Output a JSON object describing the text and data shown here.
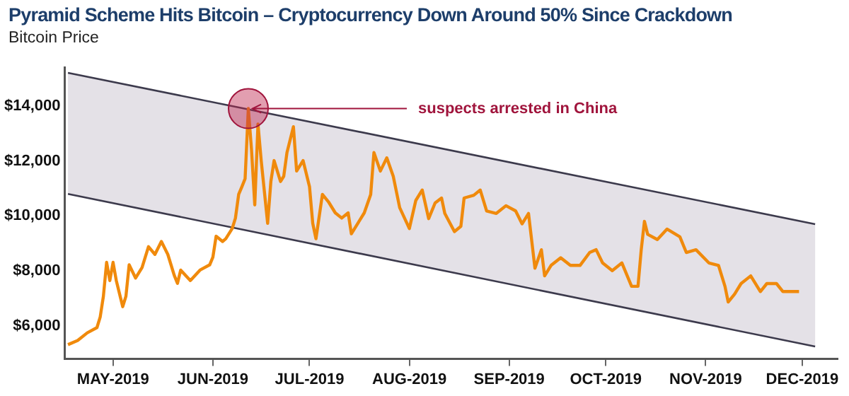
{
  "chart_data": {
    "type": "line",
    "title": "Pyramid Scheme Hits Bitcoin – Cryptocurrency Down Around 50% Since Crackdown",
    "ylabel": "Bitcoin Price",
    "xlim": [
      "2019-04-16",
      "2019-12-12"
    ],
    "ylim": [
      4800,
      15400
    ],
    "xticks": [
      {
        "value": "2019-05-01",
        "label": "MAY-2019"
      },
      {
        "value": "2019-06-01",
        "label": "JUN-2019"
      },
      {
        "value": "2019-07-01",
        "label": "JUL-2019"
      },
      {
        "value": "2019-08-01",
        "label": "AUG-2019"
      },
      {
        "value": "2019-09-01",
        "label": "SEP-2019"
      },
      {
        "value": "2019-10-01",
        "label": "OCT-2019"
      },
      {
        "value": "2019-11-01",
        "label": "NOV-2019"
      },
      {
        "value": "2019-12-01",
        "label": "DEC-2019"
      }
    ],
    "yticks": [
      {
        "value": 6000,
        "label": "$6,000"
      },
      {
        "value": 8000,
        "label": "$8,000"
      },
      {
        "value": 10000,
        "label": "$10,000"
      },
      {
        "value": 12000,
        "label": "$12,000"
      },
      {
        "value": 14000,
        "label": "$14,000"
      }
    ],
    "grid": false,
    "legend": false,
    "marker": "none",
    "annotations": [
      {
        "text": "suspects arrested in China",
        "x": "2019-06-12",
        "y": 13900
      }
    ],
    "series": [
      {
        "type": "line",
        "color": "#3c3a4c",
        "x": [
          "2019-04-17",
          "2019-12-05"
        ],
        "values": [
          15200,
          9700
        ]
      },
      {
        "type": "line",
        "color": "#3c3a4c",
        "x": [
          "2019-04-17",
          "2019-12-05"
        ],
        "values": [
          10800,
          5250
        ],
        "lower": [
          10800,
          5250
        ],
        "upper": [
          15200,
          9700
        ]
      },
      {
        "type": "line",
        "color": "#f08a0c",
        "x": [
          "2019-04-17",
          "2019-04-20",
          "2019-04-23",
          "2019-04-26",
          "2019-04-27",
          "2019-04-28",
          "2019-04-29",
          "2019-04-30",
          "2019-05-01",
          "2019-05-02",
          "2019-05-04",
          "2019-05-05",
          "2019-05-06",
          "2019-05-08",
          "2019-05-10",
          "2019-05-12",
          "2019-05-14",
          "2019-05-16",
          "2019-05-18",
          "2019-05-20",
          "2019-05-21",
          "2019-05-22",
          "2019-05-25",
          "2019-05-28",
          "2019-05-31",
          "2019-06-01",
          "2019-06-02",
          "2019-06-04",
          "2019-06-05",
          "2019-06-07",
          "2019-06-08",
          "2019-06-09",
          "2019-06-10",
          "2019-06-11",
          "2019-06-12",
          "2019-06-13",
          "2019-06-14",
          "2019-06-15",
          "2019-06-16",
          "2019-06-17",
          "2019-06-18",
          "2019-06-19",
          "2019-06-20",
          "2019-06-22",
          "2019-06-23",
          "2019-06-24",
          "2019-06-26",
          "2019-06-27",
          "2019-06-29",
          "2019-07-01",
          "2019-07-02",
          "2019-07-03",
          "2019-07-05",
          "2019-07-07",
          "2019-07-09",
          "2019-07-11",
          "2019-07-13",
          "2019-07-14",
          "2019-07-16",
          "2019-07-18",
          "2019-07-20",
          "2019-07-21",
          "2019-07-23",
          "2019-07-25",
          "2019-07-27",
          "2019-07-29",
          "2019-08-01",
          "2019-08-03",
          "2019-08-05",
          "2019-08-07",
          "2019-08-09",
          "2019-08-11",
          "2019-08-12",
          "2019-08-15",
          "2019-08-17",
          "2019-08-18",
          "2019-08-21",
          "2019-08-23",
          "2019-08-25",
          "2019-08-28",
          "2019-08-31",
          "2019-09-03",
          "2019-09-05",
          "2019-09-07",
          "2019-09-09",
          "2019-09-11",
          "2019-09-12",
          "2019-09-14",
          "2019-09-17",
          "2019-09-20",
          "2019-09-23",
          "2019-09-26",
          "2019-09-28",
          "2019-09-30",
          "2019-10-03",
          "2019-10-06",
          "2019-10-09",
          "2019-10-11",
          "2019-10-12",
          "2019-10-13",
          "2019-10-14",
          "2019-10-17",
          "2019-10-20",
          "2019-10-24",
          "2019-10-26",
          "2019-10-29",
          "2019-11-02",
          "2019-11-05",
          "2019-11-07",
          "2019-11-08",
          "2019-11-10",
          "2019-11-12",
          "2019-11-15",
          "2019-11-18",
          "2019-11-20",
          "2019-11-23",
          "2019-11-25",
          "2019-11-28",
          "2019-11-30"
        ],
        "values": [
          5320,
          5470,
          5750,
          5940,
          6320,
          7080,
          8310,
          7650,
          8310,
          7650,
          6700,
          7080,
          8220,
          7740,
          8120,
          8880,
          8600,
          9070,
          8600,
          7840,
          7550,
          8030,
          7650,
          8030,
          8220,
          8500,
          9260,
          9070,
          9170,
          9540,
          9920,
          10780,
          11060,
          11350,
          13900,
          12390,
          10400,
          13340,
          12010,
          10870,
          9730,
          11250,
          12010,
          11250,
          11440,
          12300,
          13240,
          11630,
          12010,
          11060,
          9730,
          9170,
          10780,
          10490,
          10110,
          9920,
          10110,
          9350,
          9730,
          10110,
          10780,
          12300,
          11630,
          12110,
          11440,
          10300,
          9540,
          10560,
          10940,
          9900,
          10470,
          10650,
          10090,
          9430,
          9620,
          10650,
          10750,
          10940,
          10180,
          10090,
          10370,
          10180,
          9710,
          10090,
          8100,
          8770,
          7820,
          8200,
          8480,
          8200,
          8200,
          8670,
          8770,
          8290,
          8010,
          8290,
          7440,
          7440,
          8770,
          9800,
          9330,
          9140,
          9520,
          9240,
          8670,
          8770,
          8290,
          8200,
          7440,
          6870,
          7160,
          7540,
          7820,
          7250,
          7540,
          7540,
          7250,
          7250,
          7250
        ]
      }
    ]
  }
}
